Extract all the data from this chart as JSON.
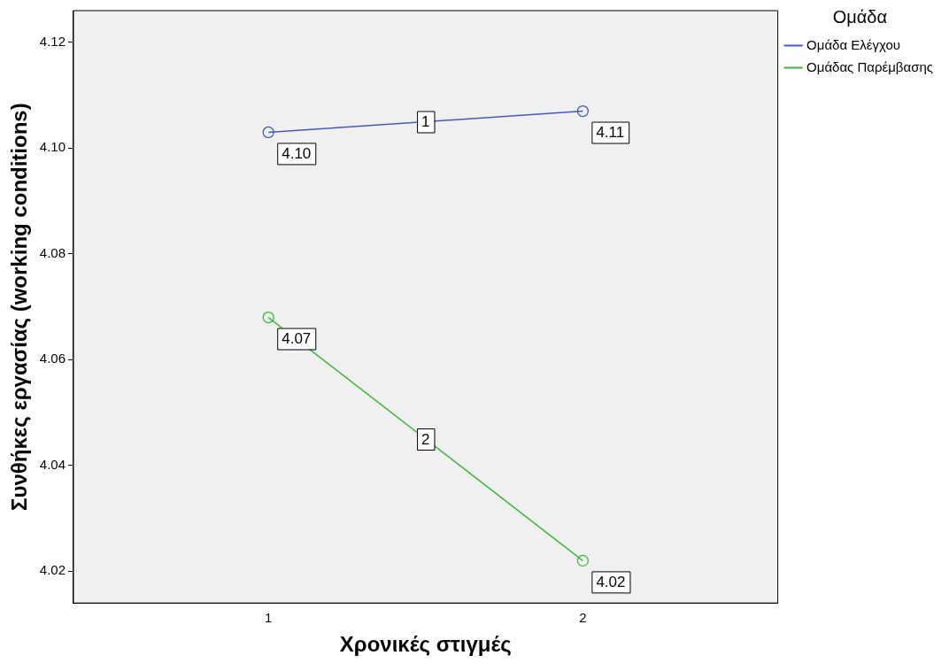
{
  "chart_data": {
    "type": "line",
    "xlabel": "Χρονικές στιγμές",
    "ylabel": "Συνθήκες εργασίας (working conditions)",
    "legend_title": "Ομάδα",
    "x": [
      1,
      2
    ],
    "xlim": [
      0.38,
      2.62
    ],
    "xticks": [
      1,
      2
    ],
    "ylim": [
      4.014,
      4.126
    ],
    "yticks": [
      4.02,
      4.04,
      4.06,
      4.08,
      {
        "value": 4.1,
        "label": "4.10"
      },
      4.12
    ],
    "series": [
      {
        "name": "Ομάδα Ελέγχου",
        "color": "#4458c4",
        "values": [
          4.103,
          4.107
        ],
        "value_labels": [
          "4.10",
          "4.11"
        ]
      },
      {
        "name": "Ομάδας Παρέμβασης",
        "color": "#3cba3c",
        "values": [
          4.068,
          4.022
        ],
        "value_labels": [
          "4.07",
          "4.02"
        ]
      }
    ],
    "annotations": [
      {
        "text": "1",
        "x": 1.5,
        "y": 4.105
      },
      {
        "text": "2",
        "x": 1.5,
        "y": 4.045
      }
    ],
    "marker": "circle",
    "line_style": "solid",
    "grid": false,
    "legend": "top right"
  }
}
